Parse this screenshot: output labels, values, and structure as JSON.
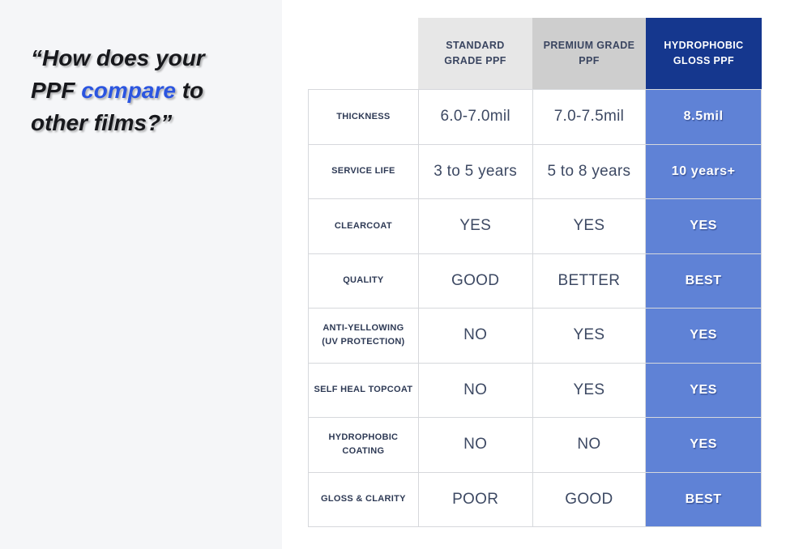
{
  "colors": {
    "page_bg_left": "#f5f6f8",
    "page_bg_right": "#ffffff",
    "header_standard_bg": "#e7e7e7",
    "header_premium_bg": "#cecece",
    "header_hydrophobic_bg": "#15378e",
    "hydrophobic_cell_bg": "#5f82d6",
    "quote_highlight": "#2b55e0",
    "label_text": "#2e3a55",
    "value_text": "#3d4963",
    "grid_border": "#d6d8dc"
  },
  "quote": {
    "line1": "“How does your",
    "line2_pre": "PPF ",
    "line2_highlight": "compare",
    "line2_post": " to",
    "line3": "other films?”"
  },
  "table": {
    "columns": [
      "STANDARD GRADE PPF",
      "PREMIUM GRADE PPF",
      "HYDROPHOBIC GLOSS PPF"
    ],
    "rows": [
      {
        "label": "THICKNESS",
        "values": [
          "6.0-7.0mil",
          "7.0-7.5mil",
          "8.5mil"
        ]
      },
      {
        "label": "SERVICE LIFE",
        "values": [
          "3 to 5 years",
          "5 to 8 years",
          "10 years+"
        ]
      },
      {
        "label": "CLEARCOAT",
        "values": [
          "YES",
          "YES",
          "YES"
        ]
      },
      {
        "label": "QUALITY",
        "values": [
          "GOOD",
          "BETTER",
          "BEST"
        ]
      },
      {
        "label": "ANTI-YELLOWING (UV PROTECTION)",
        "values": [
          "NO",
          "YES",
          "YES"
        ]
      },
      {
        "label": "SELF HEAL TOPCOAT",
        "values": [
          "NO",
          "YES",
          "YES"
        ]
      },
      {
        "label": "HYDROPHOBIC COATING",
        "values": [
          "NO",
          "NO",
          "YES"
        ]
      },
      {
        "label": "GLOSS & CLARITY",
        "values": [
          "POOR",
          "GOOD",
          "BEST"
        ]
      }
    ]
  },
  "chart_data": {
    "type": "table",
    "title": "“How does your PPF compare to other films?”",
    "columns": [
      "",
      "STANDARD GRADE PPF",
      "PREMIUM GRADE PPF",
      "HYDROPHOBIC GLOSS PPF"
    ],
    "rows": [
      [
        "THICKNESS",
        "6.0-7.0mil",
        "7.0-7.5mil",
        "8.5mil"
      ],
      [
        "SERVICE LIFE",
        "3 to 5 years",
        "5 to 8 years",
        "10 years+"
      ],
      [
        "CLEARCOAT",
        "YES",
        "YES",
        "YES"
      ],
      [
        "QUALITY",
        "GOOD",
        "BETTER",
        "BEST"
      ],
      [
        "ANTI-YELLOWING (UV PROTECTION)",
        "NO",
        "YES",
        "YES"
      ],
      [
        "SELF HEAL TOPCOAT",
        "NO",
        "YES",
        "YES"
      ],
      [
        "HYDROPHOBIC COATING",
        "NO",
        "NO",
        "YES"
      ],
      [
        "GLOSS & CLARITY",
        "POOR",
        "GOOD",
        "BEST"
      ]
    ],
    "legend_position": "none",
    "notes": "Highlighted column: HYDROPHOBIC GLOSS PPF (navy header, periwinkle cells)"
  }
}
